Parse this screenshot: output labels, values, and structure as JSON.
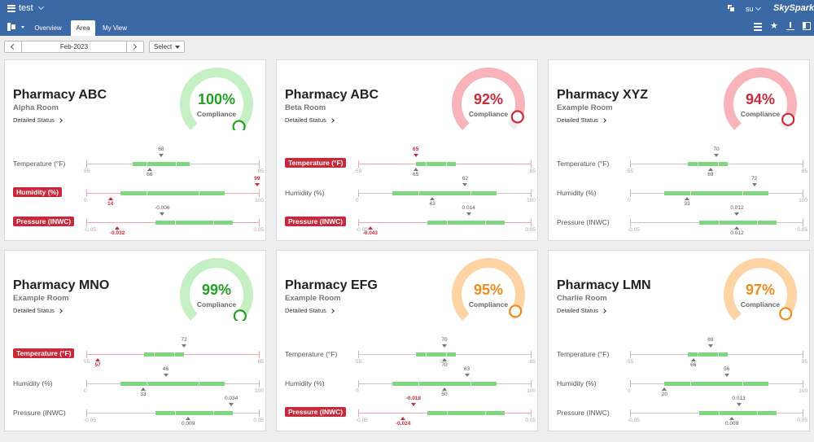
{
  "header": {
    "project": "test",
    "user": "su",
    "brand": "SkySpark"
  },
  "nav": {
    "tabs": [
      {
        "label": "Overview"
      },
      {
        "label": "Area"
      },
      {
        "label": "My View"
      }
    ],
    "active_tab": "Area"
  },
  "date_bar": {
    "date": "Feb-2023",
    "select_label": "Select"
  },
  "compliance_label": "Compliance",
  "detailed_status_label": "Detailed Status",
  "status_colors": {
    "good": "#22a022",
    "warn": "#f08c1e",
    "bad": "#cc2a3a",
    "band": "#7ed67e"
  },
  "cards": [
    {
      "name": "Pharmacy ABC",
      "room": "Alpha Room",
      "compliance": "100%",
      "status": "good",
      "metrics": [
        {
          "label": "Temperature (°F)",
          "alarm": false,
          "min_label": "55",
          "max_label": "85",
          "min": 55,
          "max": 85,
          "band": [
            63,
            73
          ],
          "setpoint": 68,
          "setpoint_label": "68",
          "current": 66,
          "current_label": "66"
        },
        {
          "label": "Humidity (%)",
          "alarm": true,
          "min_label": "0",
          "max_label": "100",
          "min": 0,
          "max": 100,
          "band": [
            20,
            80
          ],
          "setpoint": 99,
          "setpoint_label": "99",
          "setpoint_alarm": true,
          "current": 14,
          "current_label": "14"
        },
        {
          "label": "Pressure (INWC)",
          "alarm": true,
          "min_label": "-0.05",
          "max_label": "0.05",
          "min": -0.05,
          "max": 0.05,
          "band": [
            -0.01,
            0.035
          ],
          "setpoint": -0.006,
          "setpoint_label": "-0.006",
          "current": -0.032,
          "current_label": "-0.032"
        }
      ]
    },
    {
      "name": "Pharmacy ABC",
      "room": "Beta Room",
      "compliance": "92%",
      "status": "bad",
      "metrics": [
        {
          "label": "Temperature (°F)",
          "alarm": true,
          "min_label": "55",
          "max_label": "85",
          "min": 55,
          "max": 85,
          "band": [
            65,
            72
          ],
          "setpoint": 65,
          "setpoint_label": "65",
          "setpoint_alarm": true,
          "current": 65,
          "current_label": "65"
        },
        {
          "label": "Humidity (%)",
          "alarm": false,
          "min_label": "0",
          "max_label": "100",
          "min": 0,
          "max": 100,
          "band": [
            20,
            80
          ],
          "setpoint": 62,
          "setpoint_label": "62",
          "current": 43,
          "current_label": "43"
        },
        {
          "label": "Pressure (INWC)",
          "alarm": true,
          "min_label": "-0.05",
          "max_label": "0.05",
          "min": -0.05,
          "max": 0.05,
          "band": [
            -0.01,
            0.035
          ],
          "setpoint": 0.014,
          "setpoint_label": "0.014",
          "current": -0.043,
          "current_label": "-0.043"
        }
      ]
    },
    {
      "name": "Pharmacy XYZ",
      "room": "Example Room",
      "compliance": "94%",
      "status": "bad",
      "metrics": [
        {
          "label": "Temperature (°F)",
          "alarm": false,
          "min_label": "55",
          "max_label": "85",
          "min": 55,
          "max": 85,
          "band": [
            65,
            72
          ],
          "setpoint": 70,
          "setpoint_label": "70",
          "current": 69,
          "current_label": "69"
        },
        {
          "label": "Humidity (%)",
          "alarm": false,
          "min_label": "0",
          "max_label": "100",
          "min": 0,
          "max": 100,
          "band": [
            20,
            80
          ],
          "setpoint": 72,
          "setpoint_label": "72",
          "current": 33,
          "current_label": "33"
        },
        {
          "label": "Pressure (INWC)",
          "alarm": false,
          "min_label": "-0.05",
          "max_label": "0.05",
          "min": -0.05,
          "max": 0.05,
          "band": [
            -0.01,
            0.035
          ],
          "setpoint": 0.012,
          "setpoint_label": "0.012",
          "current": 0.012,
          "current_label": "0.012"
        }
      ]
    },
    {
      "name": "Pharmacy MNO",
      "room": "Example Room",
      "compliance": "99%",
      "status": "good",
      "metrics": [
        {
          "label": "Temperature (°F)",
          "alarm": true,
          "min_label": "55",
          "max_label": "85",
          "min": 55,
          "max": 85,
          "band": [
            65,
            72
          ],
          "setpoint": 72,
          "setpoint_label": "72",
          "current": 57,
          "current_label": "57"
        },
        {
          "label": "Humidity (%)",
          "alarm": false,
          "min_label": "0",
          "max_label": "100",
          "min": 0,
          "max": 100,
          "band": [
            20,
            80
          ],
          "setpoint": 46,
          "setpoint_label": "46",
          "current": 33,
          "current_label": "33"
        },
        {
          "label": "Pressure (INWC)",
          "alarm": false,
          "min_label": "-0.05",
          "max_label": "0.05",
          "min": -0.05,
          "max": 0.05,
          "band": [
            -0.01,
            0.035
          ],
          "setpoint": 0.034,
          "setpoint_label": "0.034",
          "current": 0.009,
          "current_label": "0.009"
        }
      ]
    },
    {
      "name": "Pharmacy EFG",
      "room": "Example Room",
      "compliance": "95%",
      "status": "warn",
      "metrics": [
        {
          "label": "Temperature (°F)",
          "alarm": false,
          "min_label": "55",
          "max_label": "85",
          "min": 55,
          "max": 85,
          "band": [
            65,
            72
          ],
          "setpoint": 70,
          "setpoint_label": "70",
          "current": 70,
          "current_label": "70"
        },
        {
          "label": "Humidity (%)",
          "alarm": false,
          "min_label": "0",
          "max_label": "100",
          "min": 0,
          "max": 100,
          "band": [
            20,
            80
          ],
          "setpoint": 63,
          "setpoint_label": "63",
          "current": 50,
          "current_label": "50"
        },
        {
          "label": "Pressure (INWC)",
          "alarm": true,
          "min_label": "-0.05",
          "max_label": "0.05",
          "min": -0.05,
          "max": 0.05,
          "band": [
            -0.01,
            0.035
          ],
          "setpoint": -0.018,
          "setpoint_label": "-0.018",
          "setpoint_alarm": true,
          "current": -0.024,
          "current_label": "-0.024"
        }
      ]
    },
    {
      "name": "Pharmacy LMN",
      "room": "Charlie Room",
      "compliance": "97%",
      "status": "warn",
      "metrics": [
        {
          "label": "Temperature (°F)",
          "alarm": false,
          "min_label": "55",
          "max_label": "85",
          "min": 55,
          "max": 85,
          "band": [
            65,
            72
          ],
          "setpoint": 69,
          "setpoint_label": "69",
          "current": 66,
          "current_label": "66"
        },
        {
          "label": "Humidity (%)",
          "alarm": false,
          "min_label": "0",
          "max_label": "100",
          "min": 0,
          "max": 100,
          "band": [
            20,
            80
          ],
          "setpoint": 56,
          "setpoint_label": "56",
          "current": 20,
          "current_label": "20"
        },
        {
          "label": "Pressure (INWC)",
          "alarm": false,
          "min_label": "-0.05",
          "max_label": "0.05",
          "min": -0.05,
          "max": 0.05,
          "band": [
            -0.01,
            0.035
          ],
          "setpoint": 0.013,
          "setpoint_label": "0.013",
          "current": 0.009,
          "current_label": "0.009"
        }
      ]
    }
  ]
}
